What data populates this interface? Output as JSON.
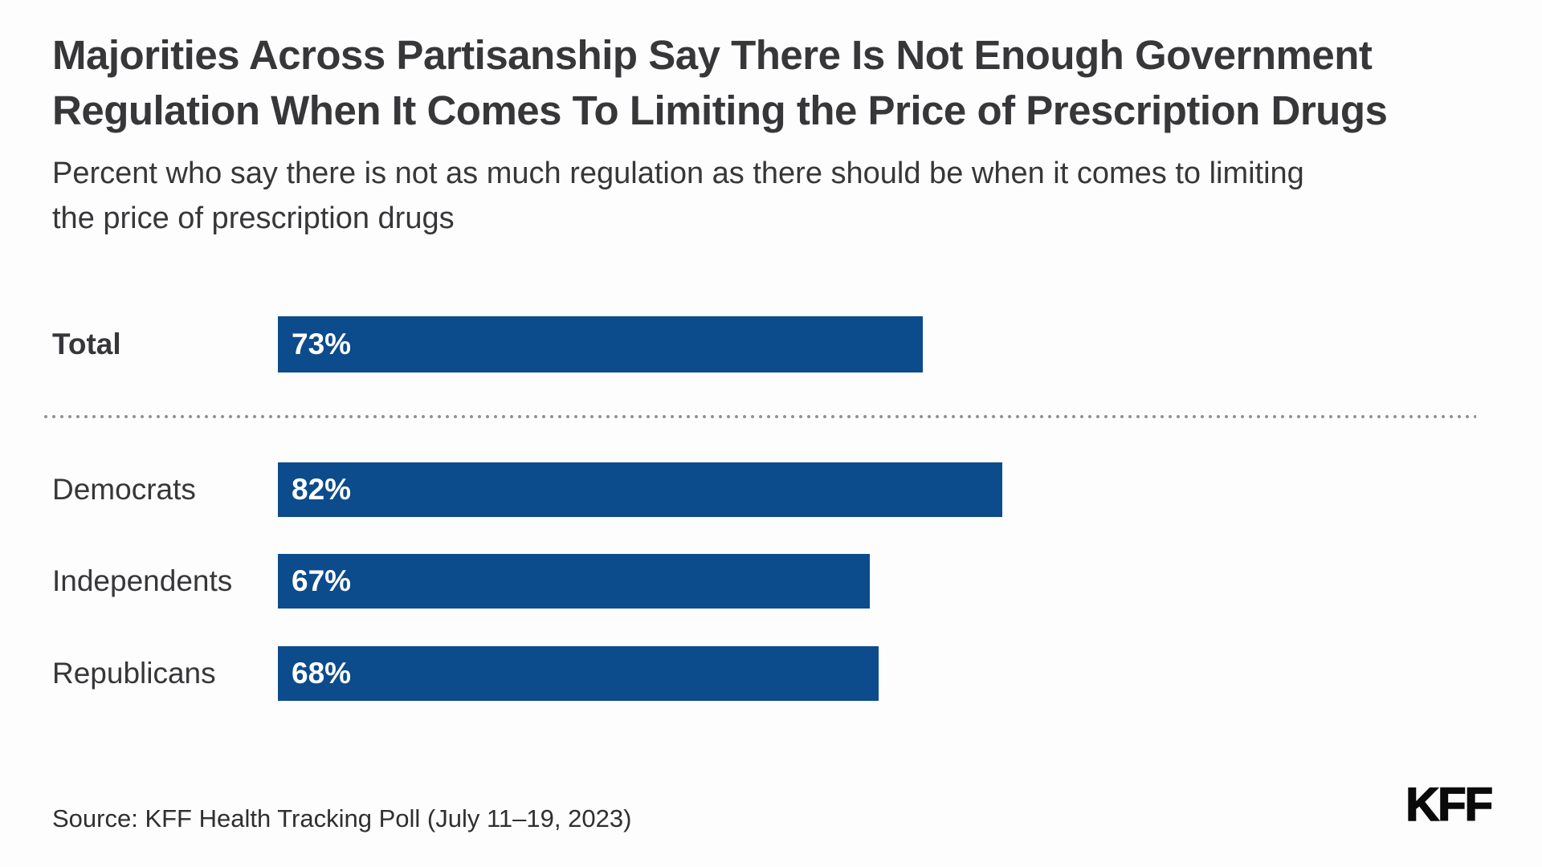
{
  "header": {
    "title_line1": "Majorities Across Partisanship Say There Is Not Enough Government",
    "title_line2": "Regulation When It Comes To Limiting the Price of Prescription Drugs",
    "subtitle_line1": "Percent who say there is not as much regulation as there should be when it comes to limiting",
    "subtitle_line2": "the price of prescription drugs"
  },
  "chart_data": {
    "type": "bar",
    "orientation": "horizontal",
    "title": "Majorities Across Partisanship Say There Is Not Enough Government Regulation When It Comes To Limiting the Price of Prescription Drugs",
    "subtitle": "Percent who say there is not as much regulation as there should be when it comes to limiting the price of prescription drugs",
    "categories": [
      "Total",
      "Democrats",
      "Independents",
      "Republicans"
    ],
    "values": [
      73,
      82,
      67,
      68
    ],
    "value_labels": [
      "73%",
      "82%",
      "67%",
      "68%"
    ],
    "xlim": [
      0,
      100
    ],
    "grid": false,
    "legend": false,
    "bar_color": "#0C4B8C",
    "value_label_color": "#FFFFFF",
    "emphasized_category": "Total",
    "divider_after_category": "Total"
  },
  "footer": {
    "source": "Source: KFF Health Tracking Poll (July 11–19, 2023)",
    "logo": "KFF"
  },
  "colors": {
    "background": "#FDFDFD",
    "title_text": "#37373A",
    "label_text": "#37373A",
    "source_text": "#2F2F31",
    "bar_blue": "#0C4B8C",
    "divider_dot": "#8E8E93",
    "logo_black": "#0A0A0A"
  }
}
